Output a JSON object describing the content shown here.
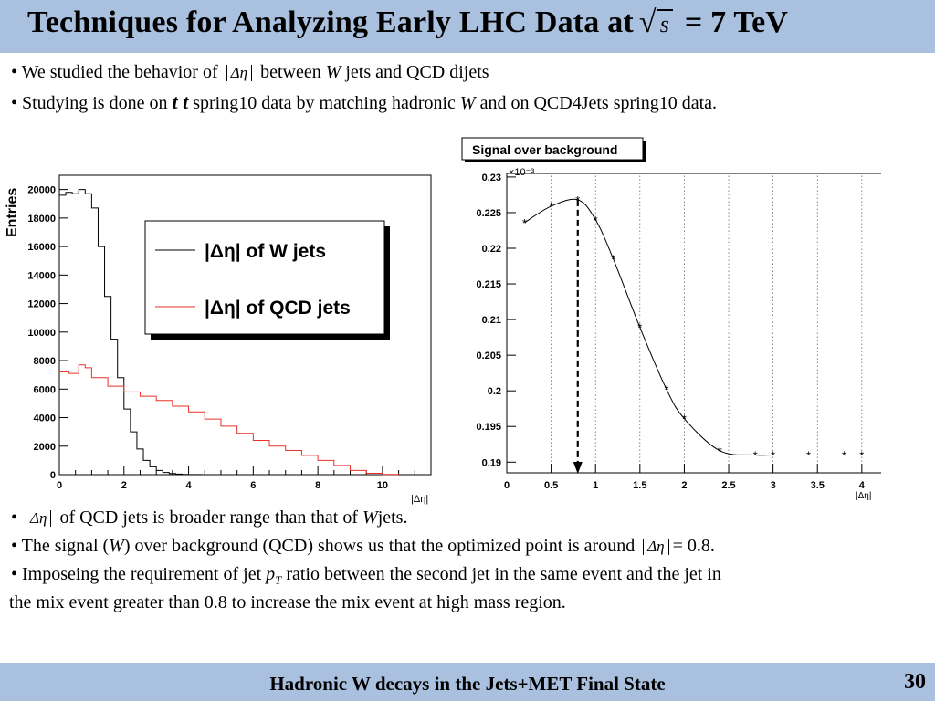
{
  "slide": {
    "title_pre": "Techniques for Analyzing Early LHC Data at",
    "title_sqrt": "s",
    "title_post": "= 7 TeV",
    "bullets_top": [
      {
        "pre": "• We studied the behavior of",
        "math": "Δη",
        "post": "between",
        "w": "W",
        "post2": "jets and QCD dijets"
      },
      {
        "pre": "• Studying is done on",
        "tt": "t t",
        "post": "spring10 data by matching hadronic",
        "w": "W",
        "post2": "and on QCD4Jets spring10 data."
      }
    ],
    "bullets_bottom": [
      {
        "pre": "•",
        "math": "Δη",
        "post": "of QCD jets is broader range than that of",
        "w": "W",
        "post2": "jets."
      },
      {
        "pre": "• The signal (",
        "w": "W",
        "post": ") over background (QCD)  shows us that the optimized point is around",
        "math": "Δη",
        "post2": "= 0.8."
      },
      {
        "line1_pre": "• Imposeing the requirement of jet",
        "pt": "p",
        "pt_sub": "T",
        "line1_post": "ratio between the second jet in the same event and the jet in",
        "line2": "the mix event greater than 0.8 to increase the mix event at high mass region."
      }
    ],
    "footer": "Hadronic W decays in the Jets+MET Final State",
    "page_number": "30"
  },
  "chart_data": [
    {
      "type": "line",
      "title": "",
      "ylabel": "Entries",
      "xlabel": "|Δη|",
      "xlim": [
        0,
        11.5
      ],
      "ylim": [
        0,
        21000
      ],
      "xticks": [
        0,
        2,
        4,
        6,
        8,
        10
      ],
      "yticks": [
        0,
        2000,
        4000,
        6000,
        8000,
        10000,
        12000,
        14000,
        16000,
        18000,
        20000
      ],
      "legend_placement": "top-right",
      "colors": {
        "w": "#000000",
        "qcd": "#e8322a"
      },
      "series": [
        {
          "name": "|Δη| of W jets",
          "x": [
            0,
            0.2,
            0.4,
            0.6,
            0.8,
            1.0,
            1.2,
            1.4,
            1.6,
            1.8,
            2.0,
            2.2,
            2.4,
            2.6,
            2.8,
            3.0,
            3.2,
            3.4,
            3.6,
            3.8,
            4.0,
            4.2,
            4.4
          ],
          "y": [
            19600,
            19800,
            19700,
            20000,
            19700,
            18700,
            16000,
            12500,
            9500,
            6800,
            4600,
            3000,
            1800,
            1000,
            550,
            300,
            150,
            80,
            40,
            20,
            10,
            5,
            0
          ]
        },
        {
          "name": "|Δη| of QCD jets",
          "x": [
            0,
            0.3,
            0.6,
            0.8,
            1.0,
            1.5,
            2.0,
            2.5,
            3.0,
            3.5,
            4.0,
            4.5,
            5.0,
            5.5,
            6.0,
            6.5,
            7.0,
            7.5,
            8.0,
            8.5,
            9.0,
            9.5,
            10.0,
            10.5
          ],
          "y": [
            7200,
            7100,
            7700,
            7500,
            6800,
            6200,
            5800,
            5500,
            5200,
            4800,
            4400,
            3900,
            3400,
            2900,
            2400,
            2000,
            1700,
            1350,
            1000,
            650,
            300,
            100,
            20,
            0
          ]
        }
      ]
    },
    {
      "type": "line",
      "title": "Signal over background",
      "xlabel": "|Δη|",
      "ylabel": "",
      "exponent_label": "×10⁻³",
      "xlim": [
        0,
        4.3
      ],
      "ylim": [
        0.1885,
        0.2305
      ],
      "xticks": [
        0,
        0.5,
        1,
        1.5,
        2,
        2.5,
        3,
        3.5,
        4
      ],
      "xtick_labels": [
        "0",
        "0.5",
        "1",
        "1.5",
        "2",
        "2.5",
        "3",
        "3.5",
        "4"
      ],
      "yticks": [
        0.19,
        0.195,
        0.2,
        0.205,
        0.21,
        0.215,
        0.22,
        0.225,
        0.23
      ],
      "ytick_labels": [
        "0.19",
        "0.195",
        "0.2",
        "0.205",
        "0.21",
        "0.215",
        "0.22",
        "0.225",
        "0.23"
      ],
      "grid": true,
      "optimized_point": 0.8,
      "series": [
        {
          "name": "",
          "x": [
            0.2,
            0.5,
            0.8,
            1.0,
            1.2,
            1.5,
            1.8,
            2.0,
            2.4,
            2.8,
            3.0,
            3.4,
            3.8,
            4.0
          ],
          "y": [
            0.2236,
            0.2259,
            0.2268,
            0.224,
            0.2185,
            0.2089,
            0.2002,
            0.1961,
            0.1916,
            0.191,
            0.191,
            0.191,
            0.191,
            0.191
          ]
        }
      ]
    }
  ]
}
